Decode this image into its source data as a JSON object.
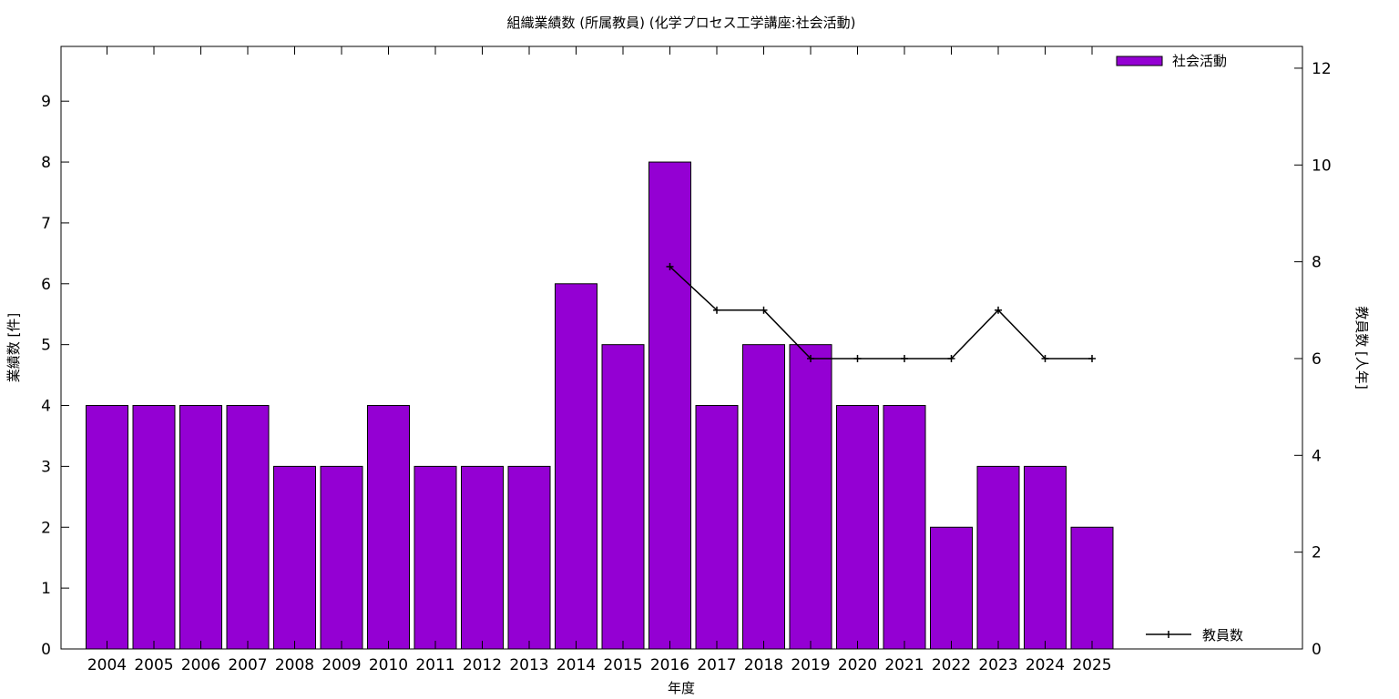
{
  "chart_data": {
    "type": "bar",
    "title": "組織業績数 (所属教員) (化学プロセス工学講座:社会活動)",
    "xlabel": "年度",
    "ylabel": "業績数 [件]",
    "y2label": "教員数 [人年]",
    "categories": [
      "2004",
      "2005",
      "2006",
      "2007",
      "2008",
      "2009",
      "2010",
      "2011",
      "2012",
      "2013",
      "2014",
      "2015",
      "2016",
      "2017",
      "2018",
      "2019",
      "2020",
      "2021",
      "2022",
      "2023",
      "2024",
      "2025"
    ],
    "series": [
      {
        "name": "社会活動",
        "type": "bar",
        "axis": "left",
        "color": "#9400d3",
        "values": [
          4,
          4,
          4,
          4,
          3,
          3,
          4,
          3,
          3,
          3,
          6,
          5,
          8,
          4,
          5,
          5,
          4,
          4,
          2,
          3,
          3,
          2
        ]
      }
    ],
    "line_series": [
      {
        "name": "教員数",
        "type": "line",
        "axis": "right",
        "color": "#000000",
        "x": [
          "2016",
          "2017",
          "2018",
          "2019",
          "2020",
          "2021",
          "2022",
          "2023",
          "2024",
          "2025"
        ],
        "values": [
          7.9,
          7,
          7,
          6,
          6,
          6,
          6,
          7,
          6,
          6
        ]
      }
    ],
    "ylim": [
      0,
      9.9
    ],
    "y_ticks": [
      0,
      1,
      2,
      3,
      4,
      5,
      6,
      7,
      8,
      9
    ],
    "y2lim": [
      0,
      12.45
    ],
    "y2_ticks": [
      0,
      2,
      4,
      6,
      8,
      10,
      12
    ],
    "legend_placement": "top-right",
    "grid": false
  }
}
